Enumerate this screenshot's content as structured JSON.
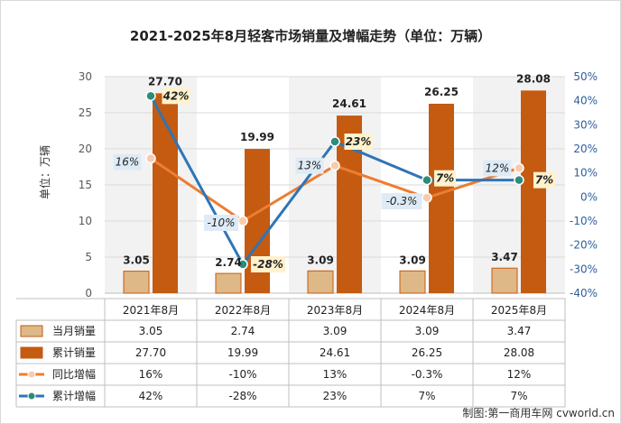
{
  "chart_data": {
    "type": "bar",
    "title": "2021-2025年8月轻客市场销量及增幅走势（单位：万辆）",
    "ylabel": "单位：万辆",
    "ylim": [
      0,
      30
    ],
    "yticks": [
      "0",
      "5",
      "10",
      "15",
      "20",
      "25",
      "30"
    ],
    "y2lim": [
      -40,
      50
    ],
    "y2ticks": [
      "-40%",
      "-30%",
      "-20%",
      "-10%",
      "0%",
      "10%",
      "20%",
      "30%",
      "40%",
      "50%"
    ],
    "categories": [
      "2021年8月",
      "2022年8月",
      "2023年8月",
      "2024年8月",
      "2025年8月"
    ],
    "series": [
      {
        "name": "当月销量",
        "kind": "bar",
        "color": "#deb887",
        "values": [
          3.05,
          2.74,
          3.09,
          3.09,
          3.47
        ],
        "labels": [
          "3.05",
          "2.74",
          "3.09",
          "3.09",
          "3.47"
        ]
      },
      {
        "name": "累计销量",
        "kind": "bar",
        "color": "#c55a11",
        "values": [
          27.7,
          19.99,
          24.61,
          26.25,
          28.08
        ],
        "labels": [
          "27.70",
          "19.99",
          "24.61",
          "26.25",
          "28.08"
        ]
      },
      {
        "name": "同比增幅",
        "kind": "line",
        "axis": "right",
        "color": "#ed7d31",
        "values": [
          16,
          -10,
          13,
          -0.3,
          12
        ],
        "labels": [
          "16%",
          "-10%",
          "13%",
          "-0.3%",
          "12%"
        ]
      },
      {
        "name": "累计增幅",
        "kind": "line",
        "axis": "right",
        "color": "#2e75b6",
        "values": [
          42,
          -28,
          23,
          7,
          7
        ],
        "labels": [
          "42%",
          "-28%",
          "23%",
          "7%",
          "7%"
        ]
      }
    ],
    "grid": true,
    "legend": "data-table"
  },
  "footer": {
    "credit": "制图:第一商用车网 cvworld.cn"
  }
}
